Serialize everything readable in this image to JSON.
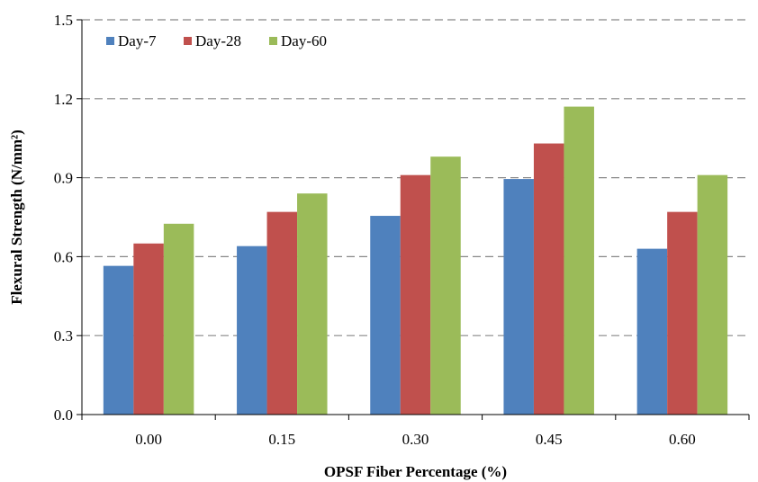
{
  "chart_data": {
    "type": "bar",
    "categories": [
      "0.00",
      "0.15",
      "0.30",
      "0.45",
      "0.60"
    ],
    "series": [
      {
        "name": "Day-7",
        "values": [
          0.565,
          0.64,
          0.755,
          0.895,
          0.63
        ],
        "color": "#4f81bd"
      },
      {
        "name": "Day-28",
        "values": [
          0.65,
          0.77,
          0.91,
          1.03,
          0.77
        ],
        "color": "#c0504d"
      },
      {
        "name": "Day-60",
        "values": [
          0.725,
          0.84,
          0.98,
          1.17,
          0.91
        ],
        "color": "#9bbb59"
      }
    ],
    "xlabel": "OPSF Fiber Percentage (%)",
    "ylabel": "Flexural Strength (N/mm²)",
    "ylim": [
      0,
      1.5
    ],
    "yticks": [
      "0.0",
      "0.3",
      "0.6",
      "0.9",
      "1.2",
      "1.5"
    ],
    "grid": "horizontal dashed",
    "legend_position": "top-left"
  }
}
